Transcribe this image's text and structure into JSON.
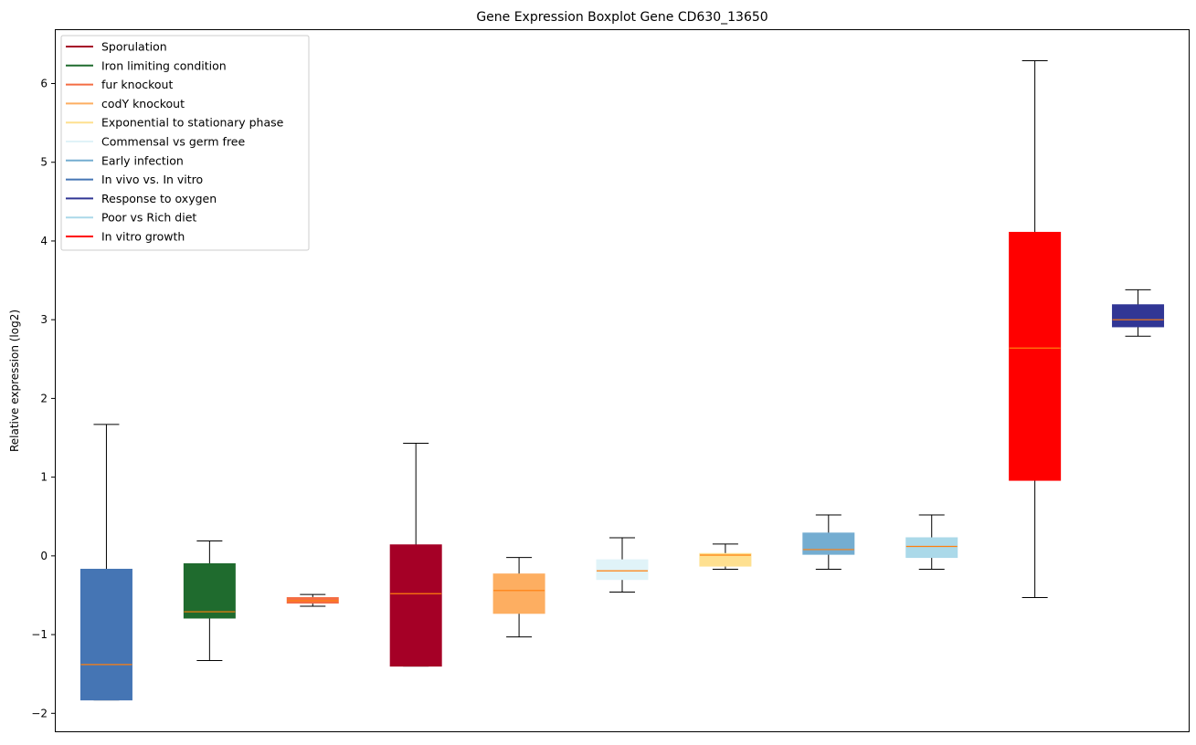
{
  "chart_data": {
    "type": "boxplot",
    "title": "Gene Expression Boxplot Gene CD630_13650",
    "xlabel": "",
    "ylabel": "Relative expression (log2)",
    "ylim": [
      -2.24,
      6.69
    ],
    "yticks": [
      -2,
      -1,
      0,
      1,
      2,
      3,
      4,
      5,
      6
    ],
    "grid": false,
    "legend_position": "top-left",
    "legend": [
      {
        "label": "Sporulation",
        "color": "#a50026"
      },
      {
        "label": "Iron limiting condition",
        "color": "#1f6b2e"
      },
      {
        "label": "fur knockout",
        "color": "#f46d43"
      },
      {
        "label": "codY knockout",
        "color": "#fdae61"
      },
      {
        "label": "Exponential to stationary phase",
        "color": "#fee090"
      },
      {
        "label": "Commensal vs germ free",
        "color": "#e0f3f8"
      },
      {
        "label": "Early infection",
        "color": "#74add1"
      },
      {
        "label": "In vivo vs. In vitro",
        "color": "#4575b4"
      },
      {
        "label": "Response to oxygen",
        "color": "#313695"
      },
      {
        "label": "Poor vs Rich diet",
        "color": "#abd9e9"
      },
      {
        "label": "In vitro growth",
        "color": "#ff0000"
      }
    ],
    "median_color": "#ff7f0e",
    "boxes": [
      {
        "series": "In vivo vs. In vitro",
        "color": "#4575b4",
        "whislo": -1.83,
        "q1": -1.83,
        "med": -1.38,
        "q3": -0.17,
        "whishi": 1.67
      },
      {
        "series": "Iron limiting condition",
        "color": "#1f6b2e",
        "whislo": -1.33,
        "q1": -0.79,
        "med": -0.71,
        "q3": -0.1,
        "whishi": 0.19
      },
      {
        "series": "fur knockout",
        "color": "#f46d43",
        "whislo": -0.64,
        "q1": -0.6,
        "med": -0.57,
        "q3": -0.53,
        "whishi": -0.49
      },
      {
        "series": "Sporulation",
        "color": "#a50026",
        "whislo": -1.4,
        "q1": -1.4,
        "med": -0.48,
        "q3": 0.14,
        "whishi": 1.43
      },
      {
        "series": "codY knockout",
        "color": "#fdae61",
        "whislo": -1.03,
        "q1": -0.73,
        "med": -0.44,
        "q3": -0.23,
        "whishi": -0.02
      },
      {
        "series": "Commensal vs germ free",
        "color": "#e0f3f8",
        "whislo": -0.46,
        "q1": -0.3,
        "med": -0.19,
        "q3": -0.05,
        "whishi": 0.23
      },
      {
        "series": "Exponential to stationary phase",
        "color": "#fee090",
        "whislo": -0.17,
        "q1": -0.13,
        "med": 0.01,
        "q3": 0.03,
        "whishi": 0.15
      },
      {
        "series": "Early infection",
        "color": "#74add1",
        "whislo": -0.17,
        "q1": 0.02,
        "med": 0.08,
        "q3": 0.29,
        "whishi": 0.52
      },
      {
        "series": "Poor vs Rich diet",
        "color": "#abd9e9",
        "whislo": -0.17,
        "q1": -0.02,
        "med": 0.12,
        "q3": 0.23,
        "whishi": 0.52
      },
      {
        "series": "In vitro growth",
        "color": "#ff0000",
        "whislo": -0.53,
        "q1": 0.96,
        "med": 2.64,
        "q3": 4.11,
        "whishi": 6.29
      },
      {
        "series": "Response to oxygen",
        "color": "#313695",
        "whislo": 2.79,
        "q1": 2.91,
        "med": 3.0,
        "q3": 3.19,
        "whishi": 3.38
      }
    ]
  }
}
